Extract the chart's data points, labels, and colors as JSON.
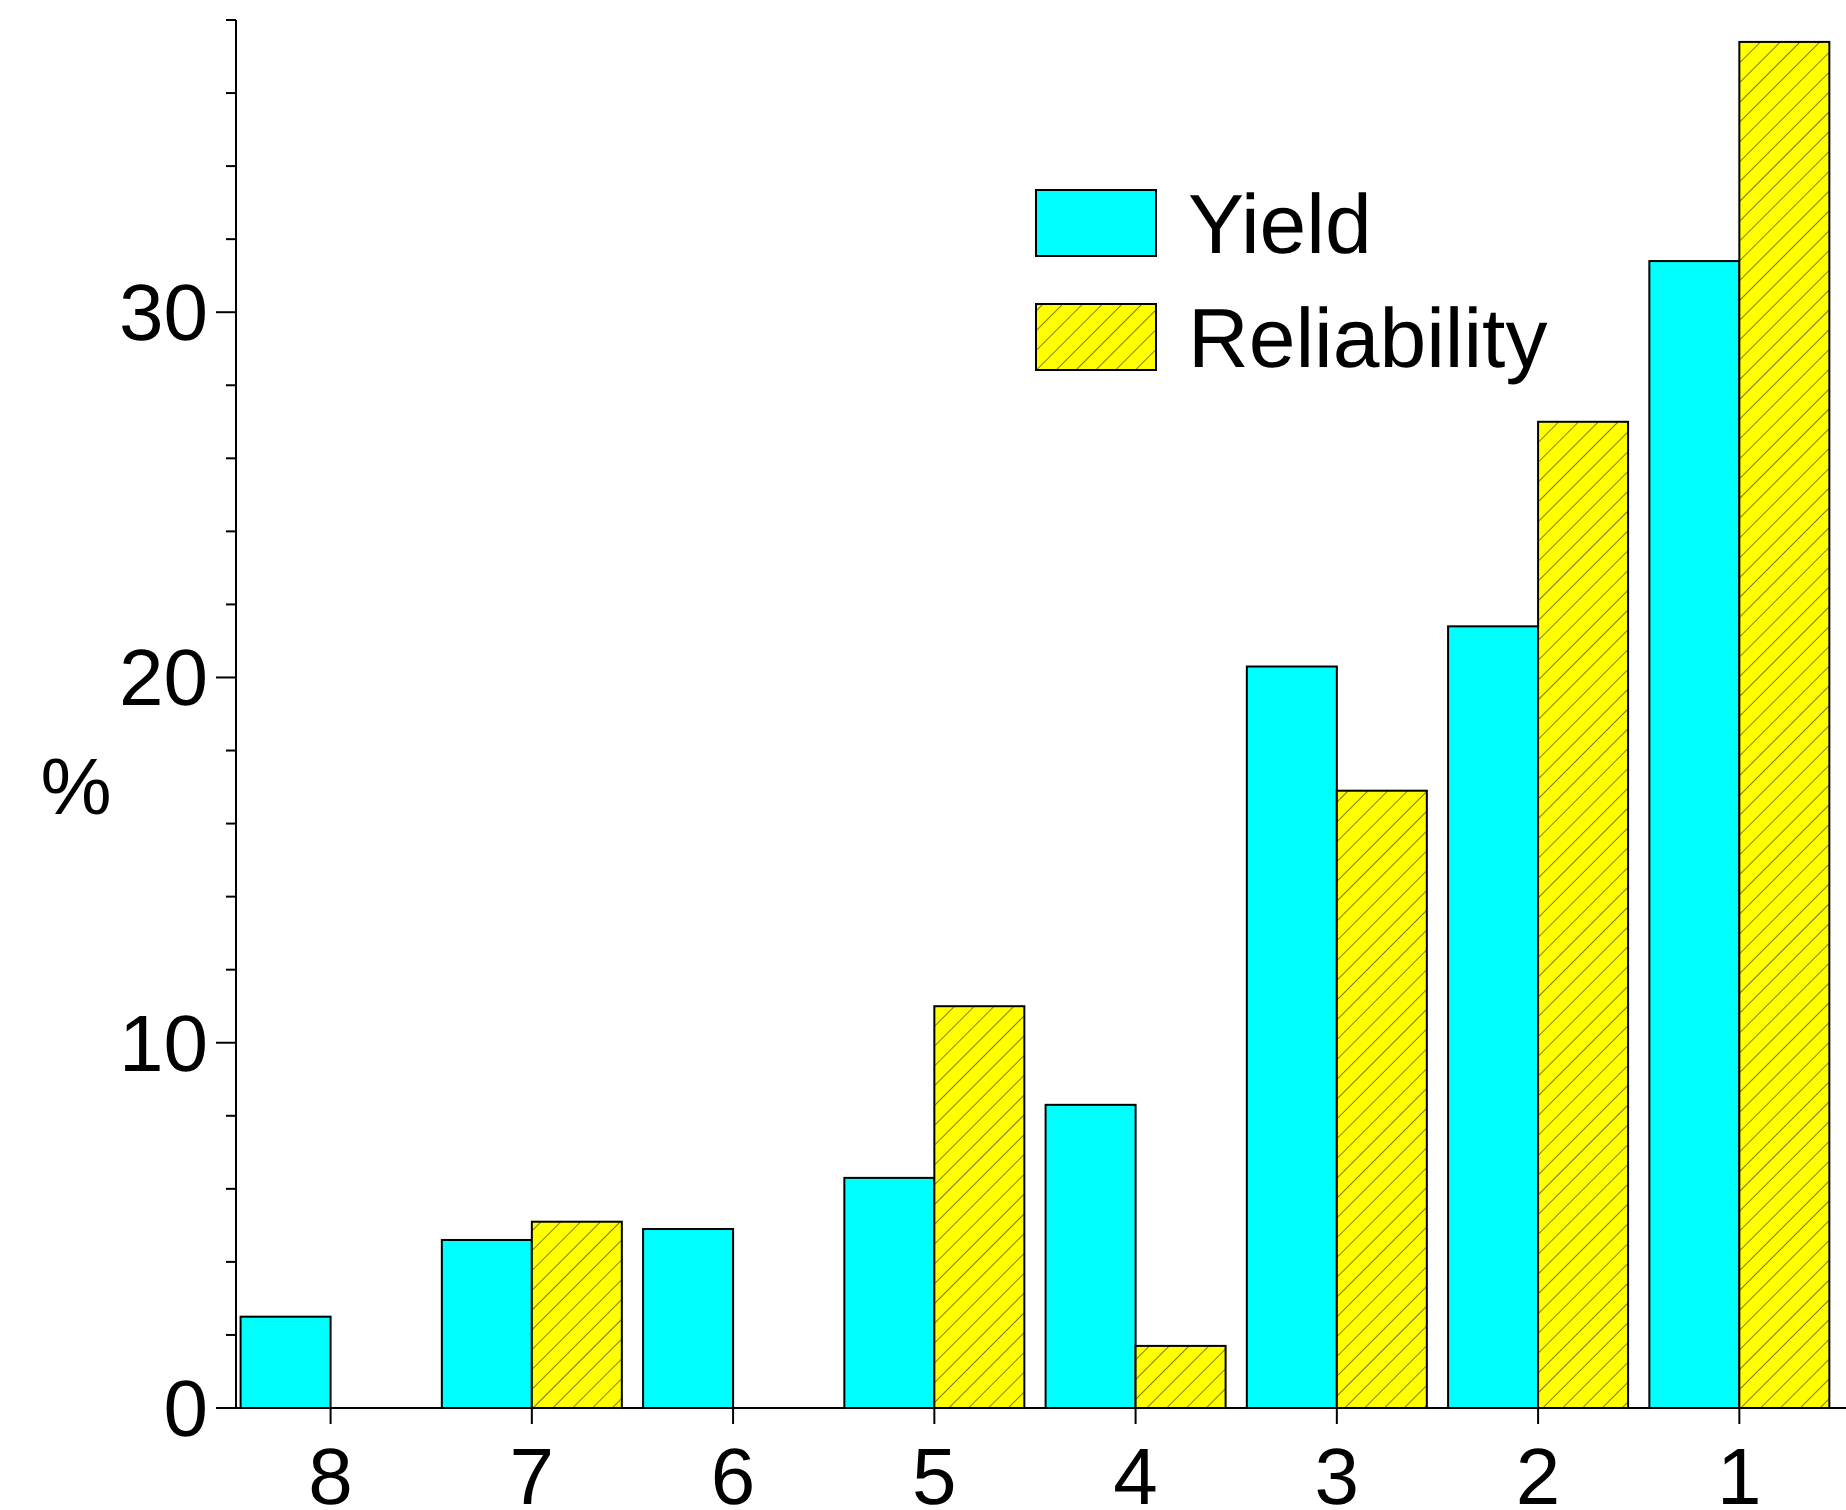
{
  "chart_data": {
    "type": "bar",
    "ylabel": "%",
    "categories": [
      "8",
      "7",
      "6",
      "5",
      "4",
      "3",
      "2",
      "1"
    ],
    "series": [
      {
        "name": "Yield",
        "color": "#00ffff",
        "values": [
          2.5,
          4.6,
          4.9,
          6.3,
          8.3,
          20.3,
          21.4,
          31.4
        ]
      },
      {
        "name": "Reliability",
        "color": "#ffff00",
        "values": [
          null,
          5.1,
          null,
          11.0,
          1.7,
          16.9,
          27.0,
          37.4
        ]
      }
    ],
    "ylim": [
      0,
      38
    ],
    "yticks": [
      0,
      {
        "value": 2,
        "label": null
      },
      {
        "value": 4,
        "label": null
      },
      {
        "value": 6,
        "label": null
      },
      {
        "value": 8,
        "label": null
      },
      10,
      {
        "value": 12,
        "label": null
      },
      {
        "value": 14,
        "label": null
      },
      {
        "value": 16,
        "label": null
      },
      {
        "value": 18,
        "label": null
      },
      20,
      {
        "value": 22,
        "label": null
      },
      {
        "value": 24,
        "label": null
      },
      {
        "value": 26,
        "label": null
      },
      {
        "value": 28,
        "label": null
      },
      30,
      {
        "value": 32,
        "label": null
      },
      {
        "value": 34,
        "label": null
      },
      {
        "value": 36,
        "label": null
      },
      {
        "value": 38,
        "label": null
      }
    ],
    "legend": "top right",
    "grid": false
  }
}
